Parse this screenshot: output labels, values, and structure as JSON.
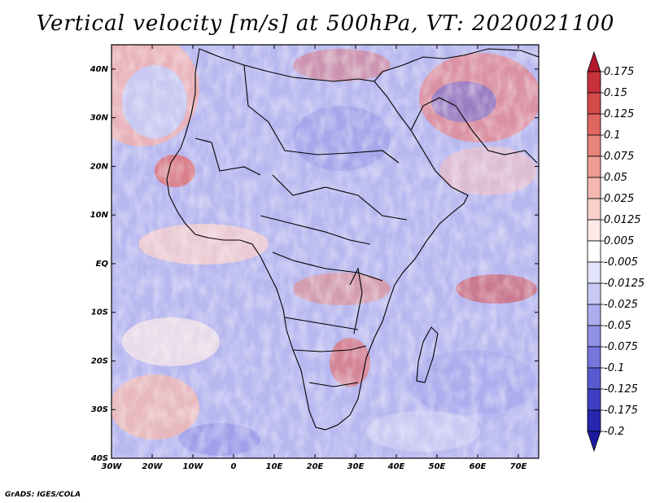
{
  "title": "Vertical velocity [m/s] at 500hPa, VT: 2020021100",
  "credit": "GrADS: IGES/COLA",
  "map": {
    "variable": "Vertical velocity",
    "units": "m/s",
    "level": "500hPa",
    "valid_time": "2020021100",
    "lat_ticks": [
      "40N",
      "30N",
      "20N",
      "10N",
      "EQ",
      "10S",
      "20S",
      "30S",
      "40S"
    ],
    "lon_ticks": [
      "30W",
      "20W",
      "10W",
      "0",
      "10E",
      "20E",
      "30E",
      "40E",
      "50E",
      "60E",
      "70E"
    ]
  },
  "colorbar": {
    "labels": [
      "0.175",
      "0.15",
      "0.125",
      "0.1",
      "0.075",
      "0.05",
      "0.025",
      "0.0125",
      "0.005",
      "-0.005",
      "-0.0125",
      "-0.025",
      "-0.05",
      "-0.075",
      "-0.1",
      "-0.125",
      "-0.175",
      "-0.2"
    ],
    "colors": [
      "#b2182b",
      "#c6313a",
      "#d6494b",
      "#e06760",
      "#e8837a",
      "#ef9d94",
      "#f5b8b0",
      "#f9d2cc",
      "#fde9e6",
      "#ffffff",
      "#e3e3fb",
      "#c8c8f5",
      "#acacee",
      "#9090e6",
      "#7575dc",
      "#5a5ad0",
      "#3f3fc2",
      "#2626b0",
      "#1b1ba0"
    ]
  }
}
